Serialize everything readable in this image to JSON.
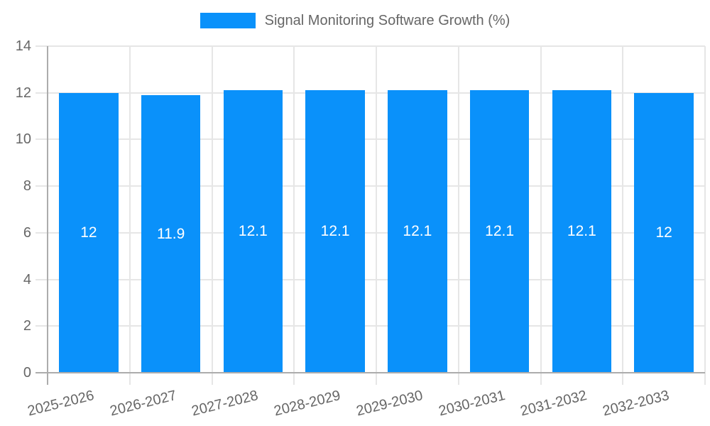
{
  "chart_data": {
    "type": "bar",
    "title": "Signal Monitoring Software Growth (%)",
    "categories": [
      "2025-2026",
      "2026-2027",
      "2027-2028",
      "2028-2029",
      "2029-2030",
      "2030-2031",
      "2031-2032",
      "2032-2033"
    ],
    "values": [
      12,
      11.9,
      12.1,
      12.1,
      12.1,
      12.1,
      12.1,
      12
    ],
    "value_labels": [
      "12",
      "11.9",
      "12.1",
      "12.1",
      "12.1",
      "12.1",
      "12.1",
      "12"
    ],
    "xlabel": "",
    "ylabel": "",
    "ylim": [
      0,
      14
    ],
    "yticks": [
      0,
      2,
      4,
      6,
      8,
      10,
      12,
      14
    ],
    "grid": true,
    "legend_position": "top",
    "x_label_rotation_deg": -14,
    "colors": {
      "bar": "#0A91FA",
      "bar_label": "#FFFFFF",
      "grid": "#E6E6E6",
      "axis_line": "#ACACAC",
      "tick_text": "#666666",
      "legend_text": "#666666",
      "background": "#FFFFFF"
    }
  }
}
